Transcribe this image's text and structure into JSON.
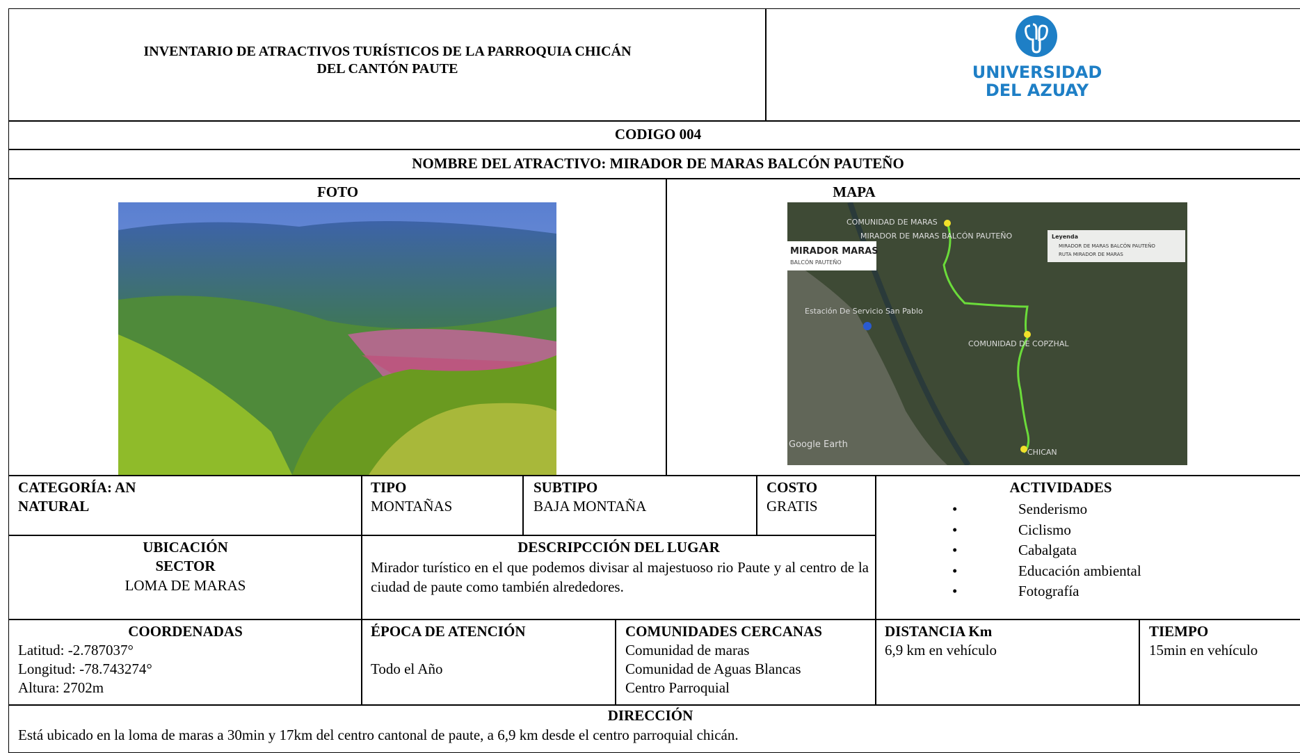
{
  "header": {
    "title_line1": "INVENTARIO DE ATRACTIVOS TURÍSTICOS DE LA PARROQUIA CHICÁN",
    "title_line2": "DEL CANTÓN PAUTE",
    "logo_line1": "UNIVERSIDAD",
    "logo_line2": "DEL AZUAY"
  },
  "codigo": "CODIGO 004",
  "nombre": "NOMBRE DEL ATRACTIVO: MIRADOR DE MARAS BALCÓN PAUTEÑO",
  "foto": {
    "heading": "FOTO"
  },
  "mapa": {
    "heading": "MAPA",
    "labels": [
      "COMUNIDAD DE MARAS",
      "MIRADOR DE MARAS BALCÓN PAUTEÑO",
      "Estación De Servicio San Pablo",
      "COMUNIDAD DE COPZHAL",
      "CHICAN",
      "Google Earth"
    ],
    "box_title": "MIRADOR MARAS",
    "box_subtitle": "BALCÓN PAUTEÑO",
    "legend_title": "Leyenda",
    "legend_items": [
      "MIRADOR DE MARAS BALCÓN PAUTEÑO",
      "RUTA MIRADOR DE MARAS"
    ]
  },
  "categoria": {
    "label": "CATEGORÍA:  AN",
    "value": "NATURAL"
  },
  "tipo": {
    "label": "TIPO",
    "value": "MONTAÑAS"
  },
  "subtipo": {
    "label": "SUBTIPO",
    "value": "BAJA MONTAÑA"
  },
  "costo": {
    "label": "COSTO",
    "value": "GRATIS"
  },
  "actividades": {
    "label": "ACTIVIDADES",
    "items": [
      "Senderismo",
      "Ciclismo",
      "Cabalgata",
      "Educación ambiental",
      "Fotografía"
    ]
  },
  "ubicacion": {
    "label1": "UBICACIÓN",
    "label2": "SECTOR",
    "value": "LOMA DE MARAS"
  },
  "descripcion": {
    "label": "DESCRIPCCIÓN DEL LUGAR",
    "text": "Mirador turístico en el que podemos divisar al majestuoso rio Paute y al centro de la ciudad de paute como también alrededores."
  },
  "coordenadas": {
    "label": "COORDENADAS",
    "lines": [
      "Latitud:  -2.787037°",
      "Longitud:  -78.743274°",
      "Altura:  2702m"
    ]
  },
  "epoca": {
    "label": "ÉPOCA DE ATENCIÓN",
    "value": "Todo el Año"
  },
  "comunidades": {
    "label": "COMUNIDADES CERCANAS",
    "items": [
      "Comunidad de maras",
      "Comunidad de Aguas Blancas",
      "Centro Parroquial"
    ]
  },
  "distancia": {
    "label": "DISTANCIA Km",
    "value": "6,9 km en vehículo"
  },
  "tiempo": {
    "label": "TIEMPO",
    "value": "15min en vehículo"
  },
  "direccion": {
    "label": "DIRECCIÓN",
    "text": "Está ubicado en la loma de maras a 30min y 17km del centro cantonal de paute, a 6,9 km desde el centro parroquial chicán."
  }
}
